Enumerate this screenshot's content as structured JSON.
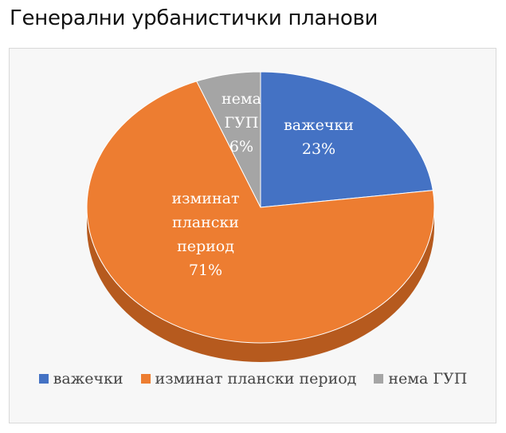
{
  "title": "Генерални урбанистички планови",
  "colors": {
    "background": "#f7f7f7",
    "frame": "#d9d9d9"
  },
  "chart_data": {
    "type": "pie",
    "style": "3d-tilted",
    "grid": false,
    "legend_position": "bottom",
    "slices": [
      {
        "label": "важечки",
        "label_lines": [
          "важечки",
          "23%"
        ],
        "value": 23,
        "color": "#4472c4",
        "side_color": "#2f5597"
      },
      {
        "label": "изминат плански период",
        "label_lines": [
          "изминат",
          "плански",
          "период",
          "71%"
        ],
        "value": 71,
        "color": "#ed7d31",
        "side_color": "#b65a1e"
      },
      {
        "label": "нема ГУП",
        "label_lines": [
          "нема",
          "ГУП",
          "6%"
        ],
        "value": 6,
        "color": "#a5a5a5",
        "side_color": "#7b7b7b"
      }
    ]
  }
}
